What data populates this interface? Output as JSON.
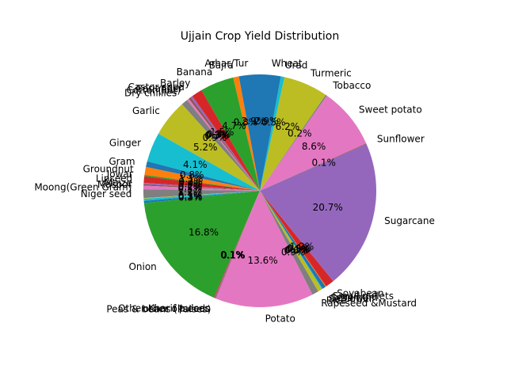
{
  "chart_data": {
    "type": "pie",
    "title": "Ujjain Crop Yield Distribution",
    "start_angle_deg": 90,
    "direction": "counterclockwise",
    "label_format": "1 decimal percent",
    "slices": [
      {
        "label": "Arhar/Tur",
        "value": 2.9,
        "color": "#1f77b4"
      },
      {
        "label": "Bajra",
        "value": 0.8,
        "color": "#ff7f0e"
      },
      {
        "label": "Banana",
        "value": 4.7,
        "color": "#2ca02c"
      },
      {
        "label": "Barley",
        "value": 1.5,
        "color": "#d62728"
      },
      {
        "label": "Castor seed",
        "value": 0.3,
        "color": "#9467bd"
      },
      {
        "label": "Coriander",
        "value": 0.3,
        "color": "#8c564b"
      },
      {
        "label": "Cotton(lint)",
        "value": 0.3,
        "color": "#e377c2"
      },
      {
        "label": "Dry chillies",
        "value": 0.9,
        "color": "#7f7f7f"
      },
      {
        "label": "Garlic",
        "value": 5.2,
        "color": "#bcbd22"
      },
      {
        "label": "Ginger",
        "value": 4.1,
        "color": "#17becf"
      },
      {
        "label": "Gram",
        "value": 0.8,
        "color": "#1f77b4"
      },
      {
        "label": "Groundnut",
        "value": 1.1,
        "color": "#ff7f0e"
      },
      {
        "label": "Jowar",
        "value": 0.2,
        "color": "#2ca02c"
      },
      {
        "label": "Linseed",
        "value": 0.9,
        "color": "#d62728"
      },
      {
        "label": "Maize",
        "value": 0.2,
        "color": "#9467bd"
      },
      {
        "label": "Masoor",
        "value": 0.2,
        "color": "#8c564b"
      },
      {
        "label": "Moong(Green Gram)",
        "value": 0.5,
        "color": "#e377c2"
      },
      {
        "label": "Niger seed",
        "value": 1.2,
        "color": "#7f7f7f"
      },
      {
        "label": "",
        "value": 0.1,
        "color": "#bcbd22"
      },
      {
        "label": "",
        "value": 0.3,
        "color": "#17becf"
      },
      {
        "label": "",
        "value": 0.3,
        "color": "#1f77b4"
      },
      {
        "label": "Onion",
        "value": 16.9,
        "color": "#2ca02c"
      },
      {
        "label": "Other Kharif pulses",
        "value": 0.1,
        "color": "#d62728"
      },
      {
        "label": "other oilseeds",
        "value": 0.1,
        "color": "#9467bd"
      },
      {
        "label": "Peas & beans (Pulses)",
        "value": 0.1,
        "color": "#8c564b"
      },
      {
        "label": "Potato",
        "value": 13.7,
        "color": "#e377c2"
      },
      {
        "label": "Rapeseed &Mustard",
        "value": 0.9,
        "color": "#7f7f7f"
      },
      {
        "label": "Rice",
        "value": 0.6,
        "color": "#bcbd22"
      },
      {
        "label": "Safflower",
        "value": 0.1,
        "color": "#17becf"
      },
      {
        "label": "Sesamum",
        "value": 0.5,
        "color": "#1f77b4"
      },
      {
        "label": "Small millets",
        "value": 0.1,
        "color": "#ff7f0e"
      },
      {
        "label": "Soyabean",
        "value": 1.2,
        "color": "#d62728"
      },
      {
        "label": "Sugarcane",
        "value": 20.8,
        "color": "#9467bd"
      },
      {
        "label": "Sunflower",
        "value": 0.1,
        "color": "#8c564b"
      },
      {
        "label": "Sweet potato",
        "value": 8.6,
        "color": "#e377c2"
      },
      {
        "label": "Tobacco",
        "value": 0.2,
        "color": "#7f7f7f"
      },
      {
        "label": "Turmeric",
        "value": 6.2,
        "color": "#bcbd22"
      },
      {
        "label": "Urad",
        "value": 0.5,
        "color": "#17becf"
      },
      {
        "label": "Wheat",
        "value": 2.9,
        "color": "#1f77b4"
      }
    ]
  }
}
